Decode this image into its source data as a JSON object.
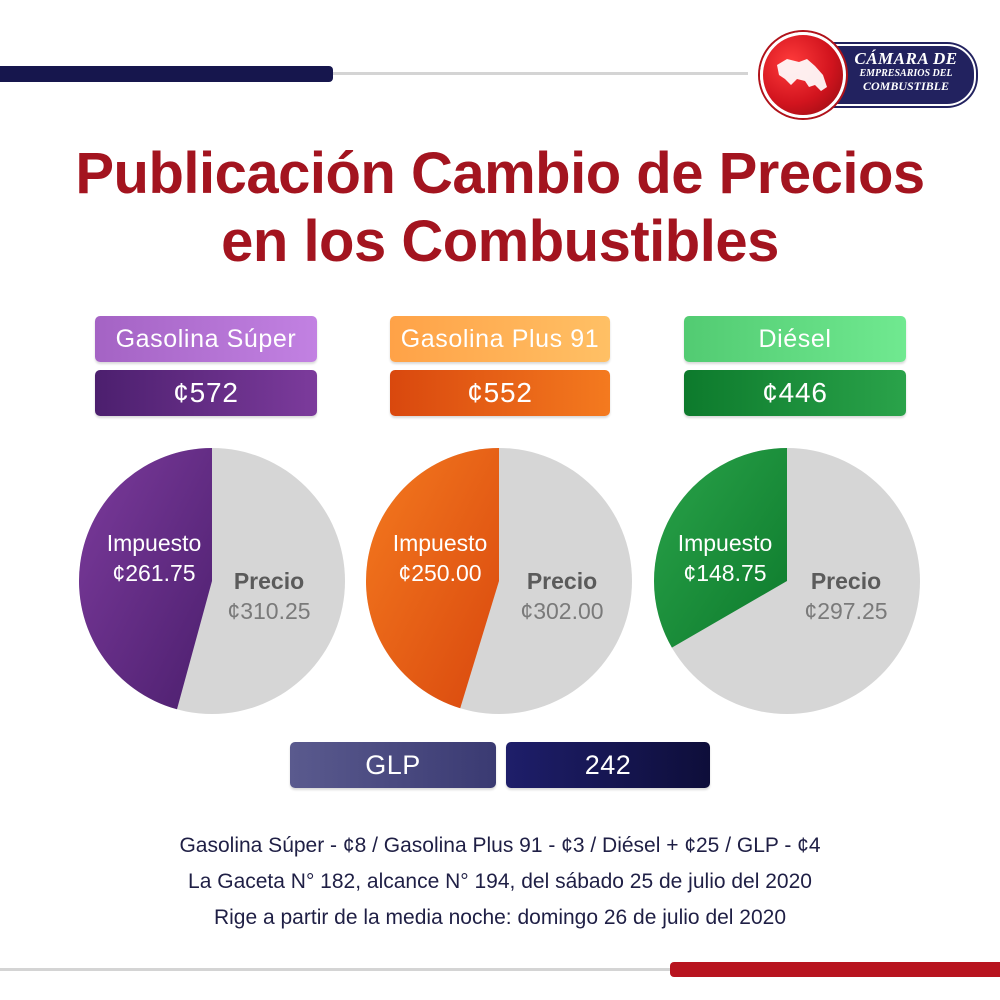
{
  "header": {
    "title_line1": "Publicación Cambio de Precios",
    "title_line2": "en los Combustibles"
  },
  "logo": {
    "line1": "CÁMARA DE",
    "line2": "EMPRESARIOS DEL",
    "line3": "COMBUSTIBLE"
  },
  "fuels": [
    {
      "name": "Gasolina Súper",
      "price": "¢572",
      "tax_label": "Impuesto",
      "tax_value": "¢261.75",
      "price_label": "Precio",
      "base_value": "¢310.25"
    },
    {
      "name": "Gasolina Plus 91",
      "price": "¢552",
      "tax_label": "Impuesto",
      "tax_value": "¢250.00",
      "price_label": "Precio",
      "base_value": "¢302.00"
    },
    {
      "name": "Diésel",
      "price": "¢446",
      "tax_label": "Impuesto",
      "tax_value": "¢148.75",
      "price_label": "Precio",
      "base_value": "¢297.25"
    }
  ],
  "glp": {
    "label": "GLP",
    "value": "242"
  },
  "footer": {
    "line1": "Gasolina Súper - ¢8 / Gasolina Plus 91 - ¢3 / Diésel + ¢25 / GLP - ¢4",
    "line2": "La Gaceta N° 182, alcance N° 194, del sábado 25 de julio del 2020",
    "line3": "Rige a partir de la media noche: domingo 26 de julio del 2020"
  },
  "colors": {
    "title": "#a3141f",
    "rest_slice": "#d6d6d6",
    "super": [
      "#7c3b9c",
      "#4c1f6e"
    ],
    "plus": [
      "#f47a1f",
      "#d9480e"
    ],
    "diesel": [
      "#2aa34a",
      "#0d7a2c"
    ],
    "glp_label": [
      "#5a5a8e",
      "#3a3a72"
    ],
    "glp_value": [
      "#1e1e6a",
      "#0e0e3a"
    ]
  },
  "chart_data": [
    {
      "type": "pie",
      "title": "Gasolina Súper",
      "categories": [
        "Impuesto",
        "Precio"
      ],
      "values": [
        261.75,
        310.25
      ]
    },
    {
      "type": "pie",
      "title": "Gasolina Plus 91",
      "categories": [
        "Impuesto",
        "Precio"
      ],
      "values": [
        250.0,
        302.0
      ]
    },
    {
      "type": "pie",
      "title": "Diésel",
      "categories": [
        "Impuesto",
        "Precio"
      ],
      "values": [
        148.75,
        297.25
      ]
    }
  ]
}
